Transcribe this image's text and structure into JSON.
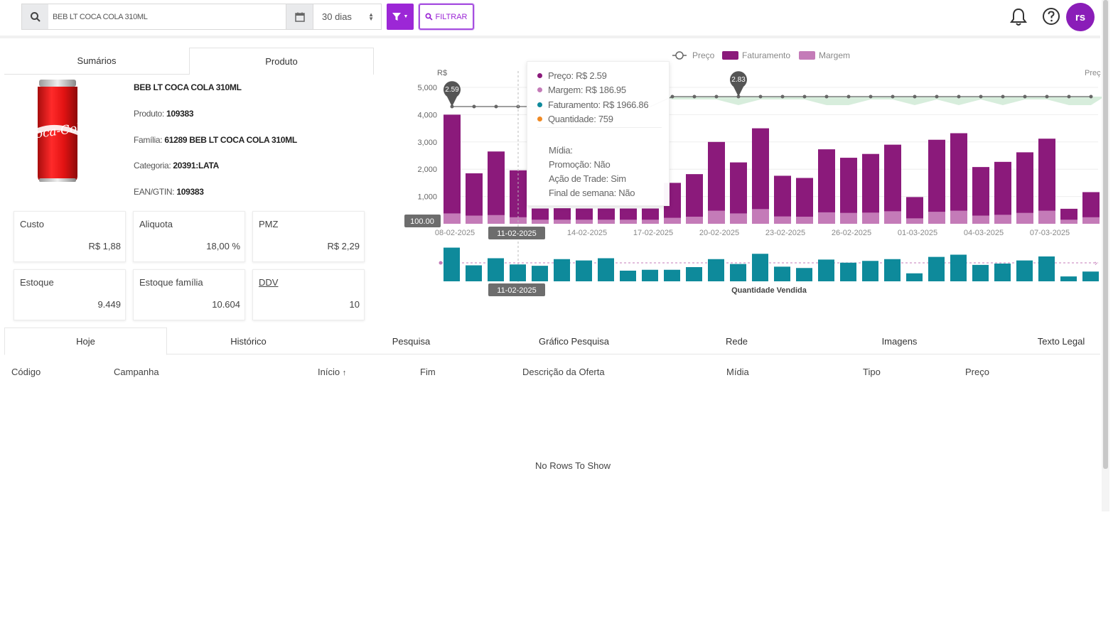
{
  "search": {
    "value": "BEB LT COCA COLA 310ML",
    "period": "30 dias",
    "filter_label": "FILTRAR"
  },
  "user": {
    "initials": "rs"
  },
  "product_tabs": [
    "Sumários",
    "Produto"
  ],
  "product": {
    "name": "BEB LT COCA COLA 310ML",
    "produto_label": "Produto:",
    "produto": "109383",
    "familia_label": "Família:",
    "familia": "61289 BEB LT COCA COLA 310ML",
    "categoria_label": "Categoria:",
    "categoria": "20391:LATA",
    "ean_label": "EAN/GTIN:",
    "ean": "109383",
    "can_brand": "Coca-Cola"
  },
  "cards": [
    {
      "label": "Custo",
      "value": "R$ 1,88"
    },
    {
      "label": "Aliquota",
      "value": "18,00 %"
    },
    {
      "label": "PMZ",
      "value": "R$ 2,29"
    },
    {
      "label": "Estoque",
      "value": "9.449"
    },
    {
      "label": "Estoque família",
      "value": "10.604"
    },
    {
      "label": "DDV",
      "value": "10"
    }
  ],
  "bottom_tabs": [
    "Hoje",
    "Histórico",
    "Pesquisa",
    "Gráfico Pesquisa",
    "Rede",
    "Imagens",
    "Texto Legal"
  ],
  "table": {
    "columns": [
      "Código",
      "Campanha",
      "Início",
      "Fim",
      "Descrição da Oferta",
      "Mídia",
      "Tipo",
      "Preço"
    ],
    "sort_indicator": "↑",
    "empty": "No Rows To Show"
  },
  "tooltip": {
    "preco": "Preço: R$ 2.59",
    "margem": "Margem: R$ 186.95",
    "faturamento": "Faturamento: R$ 1966.86",
    "quantidade": "Quantidade: 759",
    "midia": "Mídia:",
    "promocao": "Promoção: Não",
    "acao": "Ação de Trade: Sim",
    "final": "Final de semana: Não"
  },
  "colors": {
    "faturamento": "#8b1a7b",
    "margem": "#c47bb8",
    "preco_line": "#666666",
    "quantidade": "#0e8a9b",
    "accent": "#9c27d6"
  },
  "chart_data": {
    "type": "bar",
    "legend": [
      "Preço",
      "Faturamento",
      "Margem"
    ],
    "y_unit_label": "R$",
    "right_axis_label": "Preç",
    "ylim": [
      0,
      5000
    ],
    "yticks": [
      "1,000",
      "2,000",
      "3,000",
      "4,000",
      "5,000"
    ],
    "baseline_label": "100.00",
    "x_tick_labels": [
      "08-02-2025",
      "11-02-2025",
      "14-02-2025",
      "17-02-2025",
      "20-02-2025",
      "23-02-2025",
      "26-02-2025",
      "01-03-2025",
      "04-03-2025",
      "07-03-2025"
    ],
    "highlight_label": "11-02-2025",
    "faturamento": [
      4000,
      1850,
      2650,
      1960,
      560,
      570,
      560,
      560,
      560,
      560,
      1500,
      1820,
      3000,
      2250,
      3500,
      1760,
      1680,
      2730,
      2420,
      2560,
      2900,
      980,
      3080,
      3320,
      2080,
      2270,
      2620,
      3120,
      550,
      1160
    ],
    "margem": [
      380,
      300,
      320,
      240,
      150,
      150,
      150,
      150,
      150,
      150,
      220,
      260,
      480,
      380,
      540,
      270,
      260,
      420,
      400,
      410,
      460,
      200,
      440,
      480,
      300,
      330,
      400,
      480,
      150,
      240
    ],
    "preco": [
      2.59,
      2.59,
      2.59,
      2.59,
      2.59,
      2.59,
      2.59,
      2.59,
      2.59,
      2.59,
      2.83,
      2.83,
      2.83,
      2.83,
      2.83,
      2.83,
      2.83,
      2.83,
      2.83,
      2.83,
      2.83,
      2.83,
      2.83,
      2.83,
      2.83,
      2.83,
      2.83,
      2.83,
      2.83,
      2.83
    ],
    "price_markers": [
      "2.59",
      "2.83"
    ],
    "quantidade_title": "Quantidade Vendida",
    "quantidade": [
      759,
      360,
      520,
      380,
      350,
      500,
      470,
      520,
      240,
      260,
      260,
      320,
      500,
      390,
      620,
      330,
      300,
      490,
      420,
      460,
      500,
      180,
      550,
      600,
      370,
      400,
      470,
      560,
      110,
      220
    ]
  }
}
